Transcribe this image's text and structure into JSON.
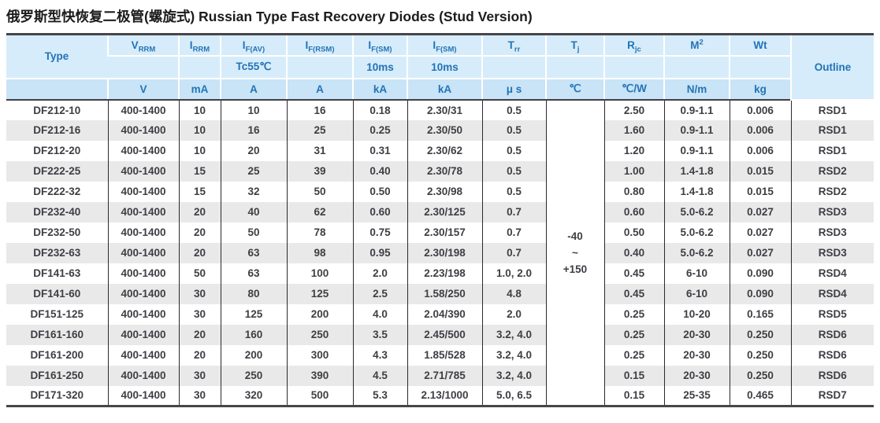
{
  "title": {
    "zh": "俄罗斯型快恢复二极管(螺旋式)",
    "en": " Russian Type Fast Recovery Diodes (Stud Version)"
  },
  "colors": {
    "header_bg": "#d6ecfa",
    "header_units_bg": "#c8e4f6",
    "header_text": "#2373b7",
    "row_stripe": "#e9e9e9",
    "data_text": "#3e3e44",
    "rule_dark": "#46464a"
  },
  "table": {
    "header": {
      "type_label": "Type",
      "outline_label": "Outline",
      "cols": [
        {
          "base": "V",
          "sub": "RRM",
          "unit": "V"
        },
        {
          "base": "I",
          "sub": "RRM",
          "unit": "mA"
        },
        {
          "base": "I",
          "sub": "F(AV)",
          "cond": "Tc55℃",
          "unit": "A"
        },
        {
          "base": "I",
          "sub": "F(RSM)",
          "unit": "A"
        },
        {
          "base": "I",
          "sub": "F(SM)",
          "cond": "10ms",
          "unit": "kA"
        },
        {
          "base": "I",
          "sub": "F(SM)",
          "cond": "10ms",
          "unit": "kA"
        },
        {
          "base": "T",
          "sub": "rr",
          "unit": "μ s"
        },
        {
          "base": "T",
          "sub": "j",
          "unit": "℃"
        },
        {
          "base": "R",
          "sub": "jc",
          "unit": "℃/W"
        },
        {
          "base": "M",
          "sup": "2",
          "unit": "N/m"
        },
        {
          "base": "Wt",
          "unit": "kg"
        }
      ]
    },
    "tj": {
      "line1": "-40",
      "line2": "~",
      "line3": "+150"
    },
    "rows": [
      {
        "type": "DF212-10",
        "vrrm": "400-1400",
        "irrm": "10",
        "ifav": "10",
        "ifrsm": "16",
        "ifsm1": "0.18",
        "ifsm2": "2.30/31",
        "trr": "0.5",
        "rjc": "2.50",
        "m2": "0.9-1.1",
        "wt": "0.006",
        "outline": "RSD1"
      },
      {
        "type": "DF212-16",
        "vrrm": "400-1400",
        "irrm": "10",
        "ifav": "16",
        "ifrsm": "25",
        "ifsm1": "0.25",
        "ifsm2": "2.30/50",
        "trr": "0.5",
        "rjc": "1.60",
        "m2": "0.9-1.1",
        "wt": "0.006",
        "outline": "RSD1"
      },
      {
        "type": "DF212-20",
        "vrrm": "400-1400",
        "irrm": "10",
        "ifav": "20",
        "ifrsm": "31",
        "ifsm1": "0.31",
        "ifsm2": "2.30/62",
        "trr": "0.5",
        "rjc": "1.20",
        "m2": "0.9-1.1",
        "wt": "0.006",
        "outline": "RSD1"
      },
      {
        "type": "DF222-25",
        "vrrm": "400-1400",
        "irrm": "15",
        "ifav": "25",
        "ifrsm": "39",
        "ifsm1": "0.40",
        "ifsm2": "2.30/78",
        "trr": "0.5",
        "rjc": "1.00",
        "m2": "1.4-1.8",
        "wt": "0.015",
        "outline": "RSD2"
      },
      {
        "type": "DF222-32",
        "vrrm": "400-1400",
        "irrm": "15",
        "ifav": "32",
        "ifrsm": "50",
        "ifsm1": "0.50",
        "ifsm2": "2.30/98",
        "trr": "0.5",
        "rjc": "0.80",
        "m2": "1.4-1.8",
        "wt": "0.015",
        "outline": "RSD2"
      },
      {
        "type": "DF232-40",
        "vrrm": "400-1400",
        "irrm": "20",
        "ifav": "40",
        "ifrsm": "62",
        "ifsm1": "0.60",
        "ifsm2": "2.30/125",
        "trr": "0.7",
        "rjc": "0.60",
        "m2": "5.0-6.2",
        "wt": "0.027",
        "outline": "RSD3"
      },
      {
        "type": "DF232-50",
        "vrrm": "400-1400",
        "irrm": "20",
        "ifav": "50",
        "ifrsm": "78",
        "ifsm1": "0.75",
        "ifsm2": "2.30/157",
        "trr": "0.7",
        "rjc": "0.50",
        "m2": "5.0-6.2",
        "wt": "0.027",
        "outline": "RSD3"
      },
      {
        "type": "DF232-63",
        "vrrm": "400-1400",
        "irrm": "20",
        "ifav": "63",
        "ifrsm": "98",
        "ifsm1": "0.95",
        "ifsm2": "2.30/198",
        "trr": "0.7",
        "rjc": "0.40",
        "m2": "5.0-6.2",
        "wt": "0.027",
        "outline": "RSD3"
      },
      {
        "type": "DF141-63",
        "vrrm": "400-1400",
        "irrm": "50",
        "ifav": "63",
        "ifrsm": "100",
        "ifsm1": "2.0",
        "ifsm2": "2.23/198",
        "trr": "1.0, 2.0",
        "rjc": "0.45",
        "m2": "6-10",
        "wt": "0.090",
        "outline": "RSD4"
      },
      {
        "type": "DF141-60",
        "vrrm": "400-1400",
        "irrm": "30",
        "ifav": "80",
        "ifrsm": "125",
        "ifsm1": "2.5",
        "ifsm2": "1.58/250",
        "trr": "4.8",
        "rjc": "0.45",
        "m2": "6-10",
        "wt": "0.090",
        "outline": "RSD4"
      },
      {
        "type": "DF151-125",
        "vrrm": "400-1400",
        "irrm": "30",
        "ifav": "125",
        "ifrsm": "200",
        "ifsm1": "4.0",
        "ifsm2": "2.04/390",
        "trr": "2.0",
        "rjc": "0.25",
        "m2": "10-20",
        "wt": "0.165",
        "outline": "RSD5"
      },
      {
        "type": "DF161-160",
        "vrrm": "400-1400",
        "irrm": "20",
        "ifav": "160",
        "ifrsm": "250",
        "ifsm1": "3.5",
        "ifsm2": "2.45/500",
        "trr": "3.2, 4.0",
        "rjc": "0.25",
        "m2": "20-30",
        "wt": "0.250",
        "outline": "RSD6"
      },
      {
        "type": "DF161-200",
        "vrrm": "400-1400",
        "irrm": "20",
        "ifav": "200",
        "ifrsm": "300",
        "ifsm1": "4.3",
        "ifsm2": "1.85/528",
        "trr": "3.2, 4.0",
        "rjc": "0.25",
        "m2": "20-30",
        "wt": "0.250",
        "outline": "RSD6"
      },
      {
        "type": "DF161-250",
        "vrrm": "400-1400",
        "irrm": "30",
        "ifav": "250",
        "ifrsm": "390",
        "ifsm1": "4.5",
        "ifsm2": "2.71/785",
        "trr": "3.2, 4.0",
        "rjc": "0.15",
        "m2": "20-30",
        "wt": "0.250",
        "outline": "RSD6"
      },
      {
        "type": "DF171-320",
        "vrrm": "400-1400",
        "irrm": "30",
        "ifav": "320",
        "ifrsm": "500",
        "ifsm1": "5.3",
        "ifsm2": "2.13/1000",
        "trr": "5.0, 6.5",
        "rjc": "0.15",
        "m2": "25-35",
        "wt": "0.465",
        "outline": "RSD7"
      }
    ]
  }
}
